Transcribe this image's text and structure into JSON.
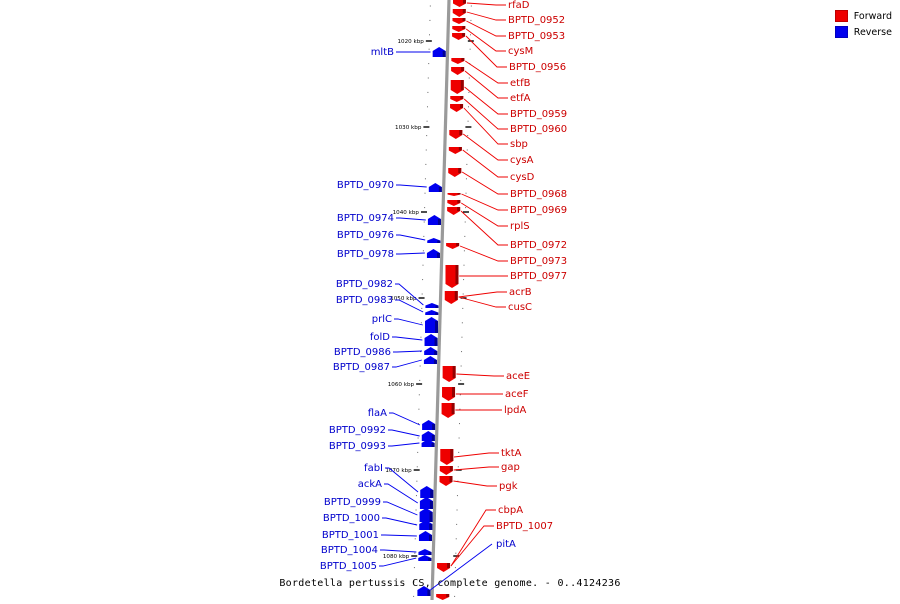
{
  "legend": [
    {
      "label": "Forward",
      "color": "#ee0000"
    },
    {
      "label": "Reverse",
      "color": "#0000ee"
    }
  ],
  "caption": "Bordetella pertussis CS, complete genome. - 0..4124236",
  "scale_labels": [
    "1020 kbp",
    "1030 kbp",
    "1040 kbp",
    "1050 kbp",
    "1060 kbp",
    "1070 kbp",
    "1080 kbp"
  ],
  "forward_genes": [
    "rfaD",
    "BPTD_0952",
    "BPTD_0953",
    "cysM",
    "BPTD_0956",
    "etfB",
    "etfA",
    "BPTD_0959",
    "BPTD_0960",
    "sbp",
    "cysA",
    "cysD",
    "BPTD_0968",
    "BPTD_0969",
    "rplS",
    "BPTD_0972",
    "BPTD_0973",
    "BPTD_0977",
    "acrB",
    "cusC",
    "aceE",
    "aceF",
    "lpdA",
    "tktA",
    "gap",
    "pgk",
    "cbpA",
    "BPTD_1007"
  ],
  "reverse_genes": [
    "mltB",
    "BPTD_0970",
    "BPTD_0974",
    "BPTD_0976",
    "BPTD_0978",
    "BPTD_0982",
    "BPTD_0983",
    "prlC",
    "folD",
    "BPTD_0986",
    "BPTD_0987",
    "flaA",
    "BPTD_0992",
    "BPTD_0993",
    "fabI",
    "ackA",
    "BPTD_0999",
    "BPTD_1000",
    "BPTD_1001",
    "BPTD_1004",
    "BPTD_1005",
    "pitA"
  ]
}
